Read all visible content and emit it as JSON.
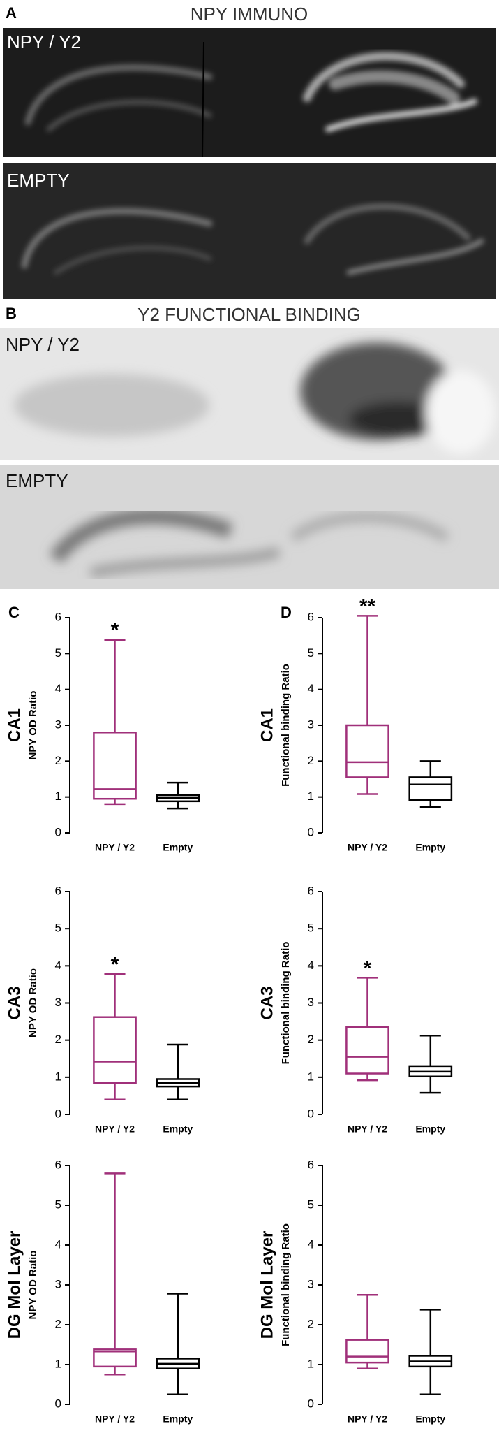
{
  "panels": [
    {
      "letter": "A",
      "title": "NPY IMMUNO",
      "images": [
        {
          "label": "NPY / Y2"
        },
        {
          "label": "EMPTY"
        }
      ]
    },
    {
      "letter": "B",
      "title": "Y2 FUNCTIONAL BINDING",
      "images": [
        {
          "label": "NPY / Y2"
        },
        {
          "label": "EMPTY"
        }
      ]
    },
    {
      "letter": "C"
    },
    {
      "letter": "D"
    }
  ],
  "chart_data": [
    {
      "type": "box",
      "region": "CA1",
      "y_label": "NPY OD Ratio",
      "categories": [
        "NPY / Y2",
        "Empty"
      ],
      "colors": [
        "#a0307a",
        "#000000"
      ],
      "annotation": "*",
      "boxes": [
        {
          "min": 0.8,
          "q1": 0.95,
          "median": 1.22,
          "q3": 2.8,
          "max": 5.38
        },
        {
          "min": 0.68,
          "q1": 0.88,
          "median": 0.97,
          "q3": 1.05,
          "max": 1.4
        }
      ],
      "ylim": [
        0,
        6
      ],
      "yticks": [
        0,
        1,
        2,
        3,
        4,
        5,
        6
      ]
    },
    {
      "type": "box",
      "region": "CA1",
      "y_label": "Functional binding Ratio",
      "categories": [
        "NPY / Y2",
        "Empty"
      ],
      "colors": [
        "#a0307a",
        "#000000"
      ],
      "annotation": "**",
      "boxes": [
        {
          "min": 1.08,
          "q1": 1.55,
          "median": 1.97,
          "q3": 3.0,
          "max": 6.05
        },
        {
          "min": 0.72,
          "q1": 0.92,
          "median": 1.35,
          "q3": 1.55,
          "max": 2.0
        }
      ],
      "ylim": [
        0,
        6
      ],
      "yticks": [
        0,
        1,
        2,
        3,
        4,
        5,
        6
      ]
    },
    {
      "type": "box",
      "region": "CA3",
      "y_label": "NPY OD Ratio",
      "categories": [
        "NPY / Y2",
        "Empty"
      ],
      "colors": [
        "#a0307a",
        "#000000"
      ],
      "annotation": "*",
      "boxes": [
        {
          "min": 0.4,
          "q1": 0.85,
          "median": 1.42,
          "q3": 2.62,
          "max": 3.78
        },
        {
          "min": 0.4,
          "q1": 0.75,
          "median": 0.85,
          "q3": 0.95,
          "max": 1.88
        }
      ],
      "ylim": [
        0,
        6
      ],
      "yticks": [
        0,
        1,
        2,
        3,
        4,
        5,
        6
      ]
    },
    {
      "type": "box",
      "region": "CA3",
      "y_label": "Functional binding Ratio",
      "categories": [
        "NPY / Y2",
        "Empty"
      ],
      "colors": [
        "#a0307a",
        "#000000"
      ],
      "annotation": "*",
      "boxes": [
        {
          "min": 0.92,
          "q1": 1.1,
          "median": 1.55,
          "q3": 2.35,
          "max": 3.68
        },
        {
          "min": 0.58,
          "q1": 1.02,
          "median": 1.15,
          "q3": 1.3,
          "max": 2.12
        }
      ],
      "ylim": [
        0,
        6
      ],
      "yticks": [
        0,
        1,
        2,
        3,
        4,
        5,
        6
      ]
    },
    {
      "type": "box",
      "region": "DG Mol Layer",
      "y_label": "NPY OD Ratio",
      "categories": [
        "NPY / Y2",
        "Empty"
      ],
      "colors": [
        "#a0307a",
        "#000000"
      ],
      "boxes": [
        {
          "min": 0.75,
          "q1": 0.95,
          "median": 1.33,
          "q3": 1.38,
          "max": 5.8
        },
        {
          "min": 0.25,
          "q1": 0.9,
          "median": 1.02,
          "q3": 1.15,
          "max": 2.78
        }
      ],
      "ylim": [
        0,
        6
      ],
      "yticks": [
        0,
        1,
        2,
        3,
        4,
        5,
        6
      ]
    },
    {
      "type": "box",
      "region": "DG Mol Layer",
      "y_label": "Functional binding Ratio",
      "categories": [
        "NPY / Y2",
        "Empty"
      ],
      "colors": [
        "#a0307a",
        "#000000"
      ],
      "boxes": [
        {
          "min": 0.9,
          "q1": 1.05,
          "median": 1.2,
          "q3": 1.62,
          "max": 2.75
        },
        {
          "min": 0.25,
          "q1": 0.95,
          "median": 1.08,
          "q3": 1.22,
          "max": 2.38
        }
      ],
      "ylim": [
        0,
        6
      ],
      "yticks": [
        0,
        1,
        2,
        3,
        4,
        5,
        6
      ]
    }
  ]
}
